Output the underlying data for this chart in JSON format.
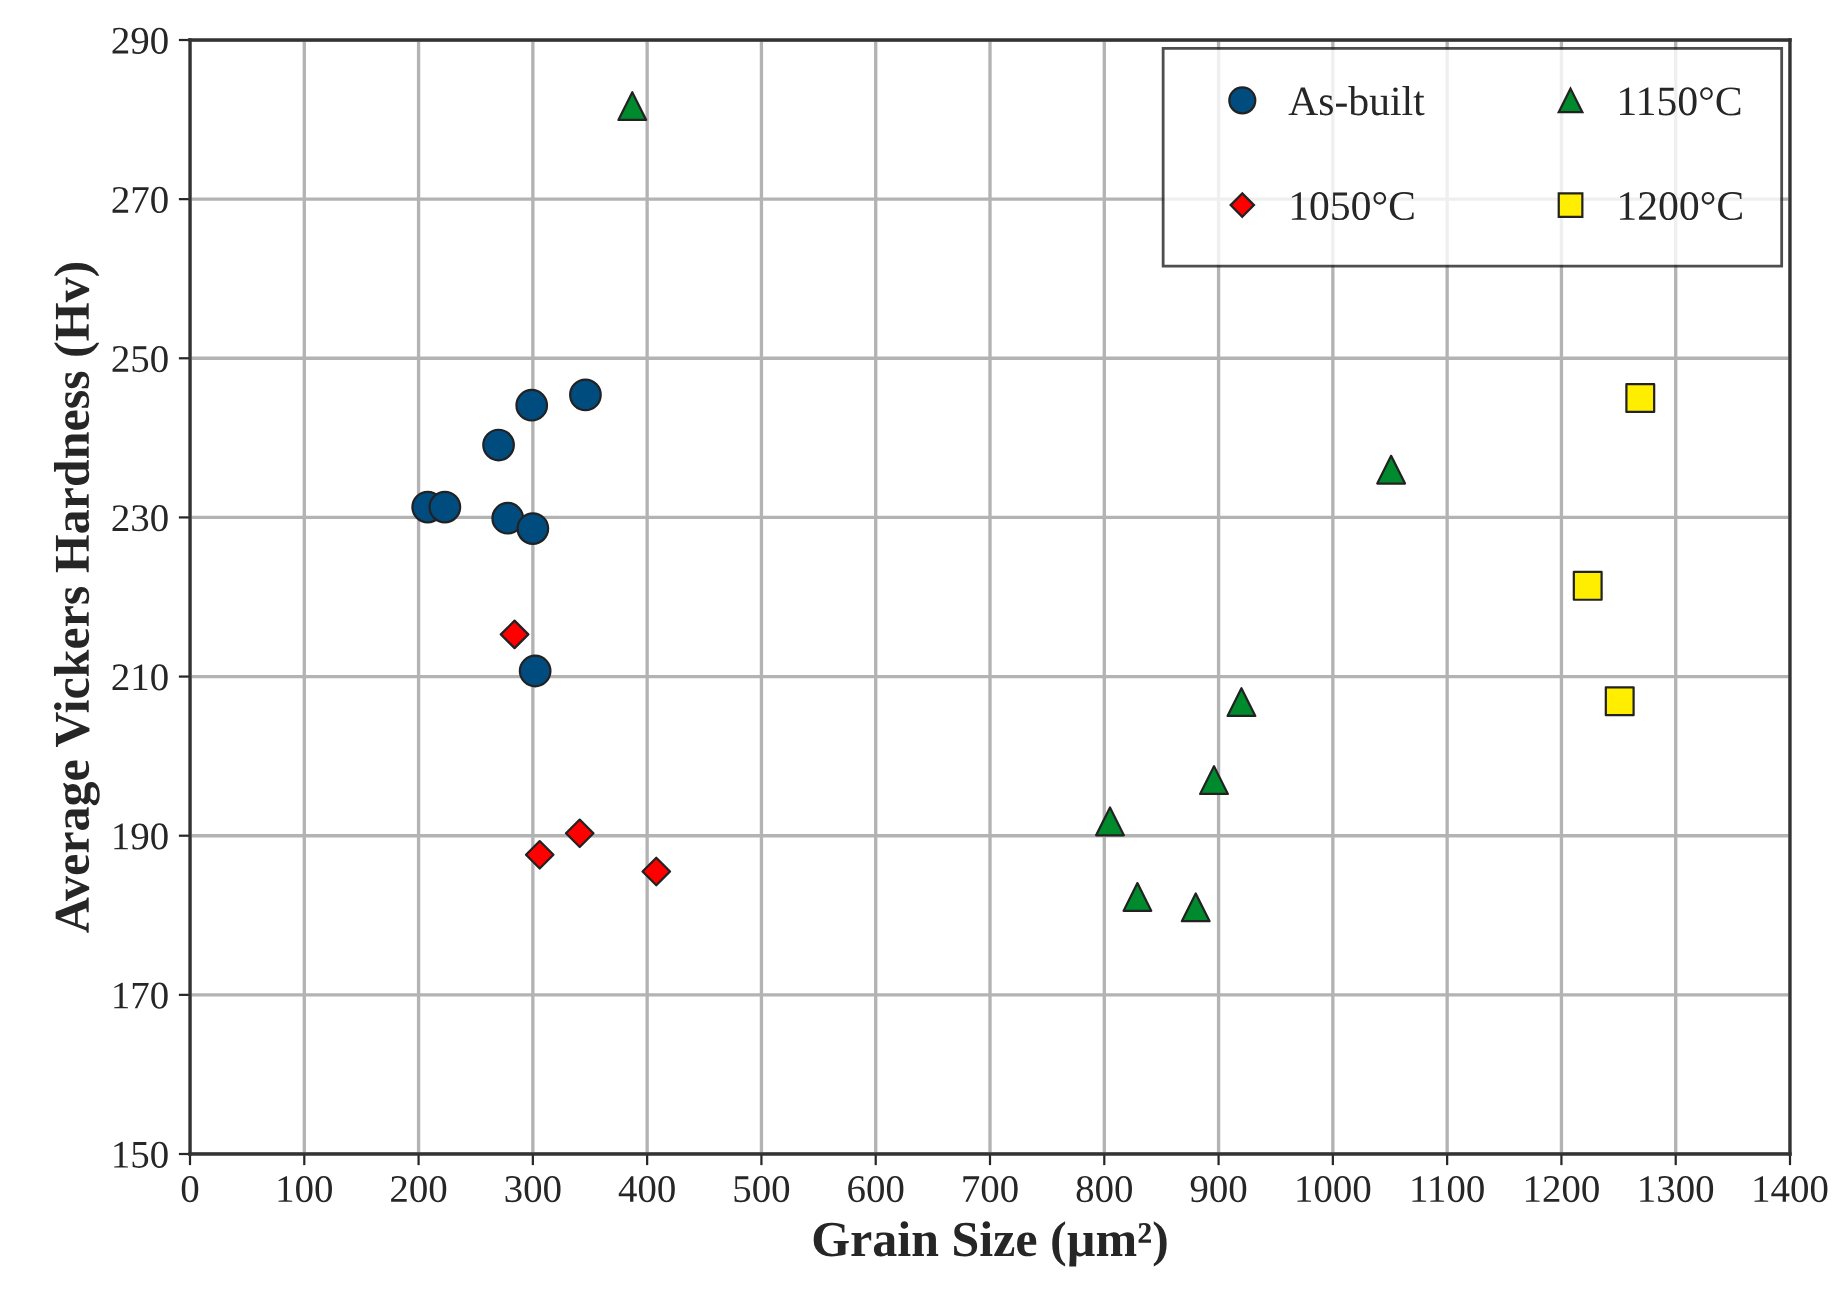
{
  "chart_data": {
    "type": "scatter",
    "xlabel": "Grain Size (µm²)",
    "ylabel": "Average Vickers Hardness (Hv)",
    "xlim": [
      0,
      1400
    ],
    "xticks": [
      0,
      100,
      200,
      300,
      400,
      500,
      600,
      700,
      800,
      900,
      1000,
      1100,
      1200,
      1300,
      1400
    ],
    "ylim": [
      150,
      290
    ],
    "yticks": [
      150,
      170,
      190,
      210,
      230,
      250,
      270,
      290
    ],
    "grid": true,
    "legend": "top right",
    "series": [
      {
        "name": "As-built",
        "color": "#004c7f",
        "marker": "circle",
        "x": [
          208,
          223,
          270,
          299,
          346,
          278,
          300,
          302
        ],
        "values": [
          231.3,
          231.3,
          239.1,
          244.1,
          245.4,
          229.9,
          228.6,
          210.7
        ]
      },
      {
        "name": "1050°C",
        "color": "#ff0000",
        "marker": "diamond",
        "x": [
          284,
          306,
          341,
          408
        ],
        "values": [
          215.3,
          187.6,
          190.3,
          185.5
        ]
      },
      {
        "name": "1150°C",
        "color": "#008a2e",
        "marker": "triangle",
        "x": [
          387,
          805,
          829,
          880,
          896,
          920,
          1051
        ],
        "values": [
          281.7,
          191.8,
          182.3,
          181,
          197,
          206.8,
          236
        ]
      },
      {
        "name": "1200°C",
        "color": "#ffee00",
        "marker": "square",
        "x": [
          1269,
          1223,
          1251
        ],
        "values": [
          245,
          221.4,
          206.9
        ]
      }
    ]
  }
}
